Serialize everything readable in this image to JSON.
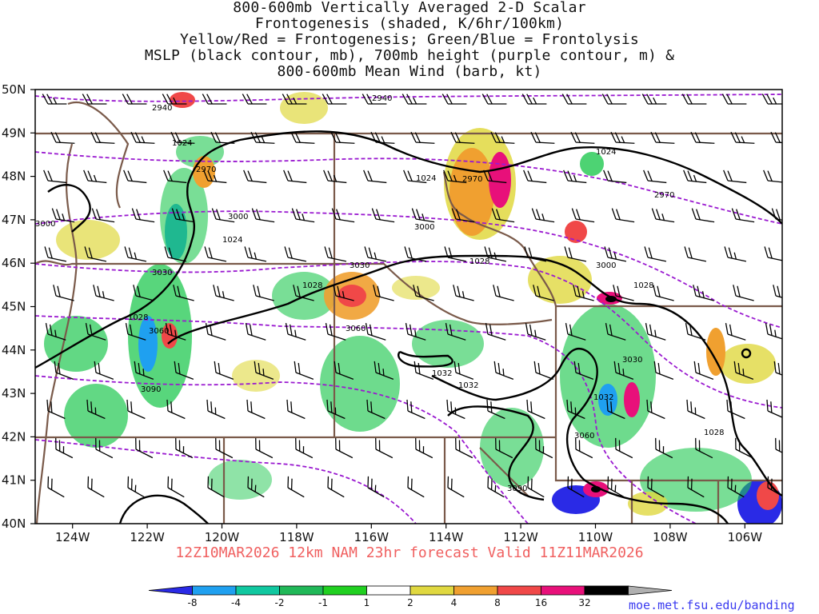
{
  "title_lines": [
    "800-600mb Vertically Averaged 2-D Scalar",
    "Frontogenesis (shaded, K/6hr/100km)",
    "Yellow/Red = Frontogenesis;  Green/Blue = Frontolysis",
    "MSLP (black contour, mb), 700mb height (purple contour, m) &",
    "800-600mb Mean Wind (barb, kt)"
  ],
  "lat_labels": [
    "50N",
    "49N",
    "48N",
    "47N",
    "46N",
    "45N",
    "44N",
    "43N",
    "42N",
    "41N",
    "40N"
  ],
  "lon_labels": [
    "124W",
    "122W",
    "120W",
    "118W",
    "116W",
    "114W",
    "112W",
    "110W",
    "108W",
    "106W"
  ],
  "valid_text": "12Z10MAR2026 12km NAM 23hr forecast Valid 11Z11MAR2026",
  "credit": "moe.met.fsu.edu/banding",
  "colorbar": {
    "labels": [
      "-8",
      "-4",
      "-2",
      "-1",
      "1",
      "2",
      "4",
      "8",
      "16",
      "32"
    ],
    "colors": [
      "#2a2ae6",
      "#1fa0f0",
      "#10c8a0",
      "#20b858",
      "#20d020",
      "#ffffff",
      "#e0d840",
      "#f0a030",
      "#f04848",
      "#e8107a",
      "#000000",
      "#b0b0b0"
    ]
  },
  "mslp_labels": [
    "1024",
    "1024",
    "1024",
    "1024",
    "1028",
    "1028",
    "1028",
    "1028",
    "1028",
    "1032",
    "1032",
    "1032"
  ],
  "hgt_labels": [
    "2940",
    "2940",
    "2970",
    "2970",
    "2970",
    "3000",
    "3000",
    "3000",
    "3000",
    "3030",
    "3030",
    "3030",
    "3060",
    "3060",
    "3060",
    "3090",
    "3090"
  ]
}
